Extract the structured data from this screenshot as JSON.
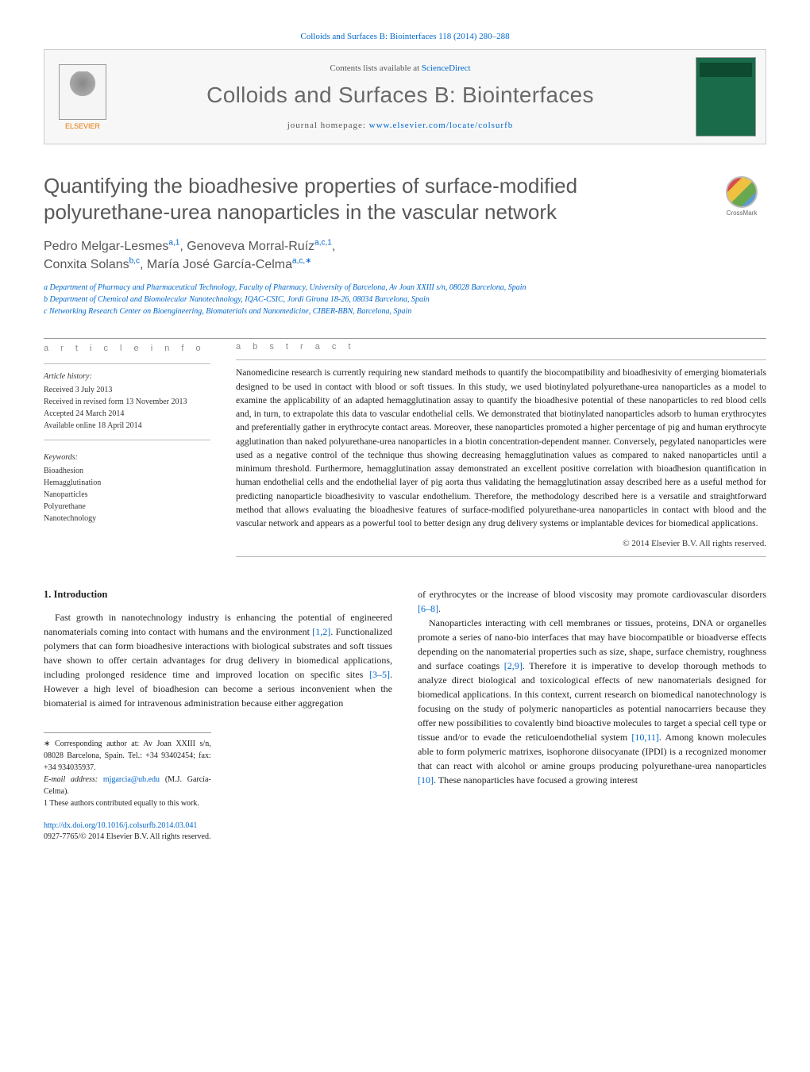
{
  "journal_ref_link": "Colloids and Surfaces B: Biointerfaces 118 (2014) 280–288",
  "header": {
    "contents_prefix": "Contents lists available at ",
    "contents_link": "ScienceDirect",
    "journal_title": "Colloids and Surfaces B: Biointerfaces",
    "homepage_label": "journal homepage: ",
    "homepage_url": "www.elsevier.com/locate/colsurfb",
    "publisher": "ELSEVIER"
  },
  "crossmark_label": "CrossMark",
  "article_title": "Quantifying the bioadhesive properties of surface-modified polyurethane-urea nanoparticles in the vascular network",
  "authors_html_parts": {
    "a1_name": "Pedro Melgar-Lesmes",
    "a1_sup": "a,1",
    "a2_name": "Genoveva Morral-Ruíz",
    "a2_sup": "a,c,1",
    "a3_name": "Conxita Solans",
    "a3_sup": "b,c",
    "a4_name": "María José García-Celma",
    "a4_sup": "a,c,∗"
  },
  "affiliations": {
    "a": "a Department of Pharmacy and Pharmaceutical Technology, Faculty of Pharmacy, University of Barcelona, Av Joan XXIII s/n, 08028 Barcelona, Spain",
    "b": "b Department of Chemical and Biomolecular Nanotechnology, IQAC-CSIC, Jordi Girona 18-26, 08034 Barcelona, Spain",
    "c": "c Networking Research Center on Bioengineering, Biomaterials and Nanomedicine, CIBER-BBN, Barcelona, Spain"
  },
  "article_info_label": "a r t i c l e   i n f o",
  "abstract_label": "a b s t r a c t",
  "history": {
    "head": "Article history:",
    "received": "Received 3 July 2013",
    "revised": "Received in revised form 13 November 2013",
    "accepted": "Accepted 24 March 2014",
    "online": "Available online 18 April 2014"
  },
  "keywords_head": "Keywords:",
  "keywords": [
    "Bioadhesion",
    "Hemagglutination",
    "Nanoparticles",
    "Polyurethane",
    "Nanotechnology"
  ],
  "abstract": "Nanomedicine research is currently requiring new standard methods to quantify the biocompatibility and bioadhesivity of emerging biomaterials designed to be used in contact with blood or soft tissues. In this study, we used biotinylated polyurethane-urea nanoparticles as a model to examine the applicability of an adapted hemagglutination assay to quantify the bioadhesive potential of these nanoparticles to red blood cells and, in turn, to extrapolate this data to vascular endothelial cells. We demonstrated that biotinylated nanoparticles adsorb to human erythrocytes and preferentially gather in erythrocyte contact areas. Moreover, these nanoparticles promoted a higher percentage of pig and human erythrocyte agglutination than naked polyurethane-urea nanoparticles in a biotin concentration-dependent manner. Conversely, pegylated nanoparticles were used as a negative control of the technique thus showing decreasing hemagglutination values as compared to naked nanoparticles until a minimum threshold. Furthermore, hemagglutination assay demonstrated an excellent positive correlation with bioadhesion quantification in human endothelial cells and the endothelial layer of pig aorta thus validating the hemagglutination assay described here as a useful method for predicting nanoparticle bioadhesivity to vascular endothelium. Therefore, the methodology described here is a versatile and straightforward method that allows evaluating the bioadhesive features of surface-modified polyurethane-urea nanoparticles in contact with blood and the vascular network and appears as a powerful tool to better design any drug delivery systems or implantable devices for biomedical applications.",
  "copyright": "© 2014 Elsevier B.V. All rights reserved.",
  "intro_heading": "1. Introduction",
  "intro_col1_p1_a": "Fast growth in nanotechnology industry is enhancing the potential of engineered nanomaterials coming into contact with humans and the environment ",
  "intro_col1_ref1": "[1,2]",
  "intro_col1_p1_b": ". Functionalized polymers that can form bioadhesive interactions with biological substrates and soft tissues have shown to offer certain advantages for drug delivery in biomedical applications, including prolonged residence time and improved location on specific sites ",
  "intro_col1_ref2": "[3–5]",
  "intro_col1_p1_c": ". However a high level of bioadhesion can become a serious inconvenient when the biomaterial is aimed for intravenous administration because either aggregation",
  "intro_col2_p1_a": "of erythrocytes or the increase of blood viscosity may promote cardiovascular disorders ",
  "intro_col2_ref1": "[6–8]",
  "intro_col2_p1_b": ".",
  "intro_col2_p2_a": "Nanoparticles interacting with cell membranes or tissues, proteins, DNA or organelles promote a series of nano-bio interfaces that may have biocompatible or bioadverse effects depending on the nanomaterial properties such as size, shape, surface chemistry, roughness and surface coatings ",
  "intro_col2_ref2": "[2,9]",
  "intro_col2_p2_b": ". Therefore it is imperative to develop thorough methods to analyze direct biological and toxicological effects of new nanomaterials designed for biomedical applications. In this context, current research on biomedical nanotechnology is focusing on the study of polymeric nanoparticles as potential nanocarriers because they offer new possibilities to covalently bind bioactive molecules to target a special cell type or tissue and/or to evade the reticuloendothelial system ",
  "intro_col2_ref3": "[10,11]",
  "intro_col2_p2_c": ". Among known molecules able to form polymeric matrixes, isophorone diisocyanate (IPDI) is a recognized monomer that can react with alcohol or amine groups producing polyurethane-urea nanoparticles ",
  "intro_col2_ref4": "[10]",
  "intro_col2_p2_d": ". These nanoparticles have focused a growing interest",
  "footnotes": {
    "corresp": "∗ Corresponding author at: Av Joan XXIII s/n, 08028 Barcelona, Spain. Tel.: +34 93402454; fax: +34 934035937.",
    "email_label": "E-mail address: ",
    "email": "mjgarcia@ub.edu",
    "email_person": " (M.J. García-Celma).",
    "equal": "1 These authors contributed equally to this work."
  },
  "doi": {
    "link": "http://dx.doi.org/10.1016/j.colsurfb.2014.03.041",
    "issn_copy": "0927-7765/© 2014 Elsevier B.V. All rights reserved."
  },
  "colors": {
    "link": "#0066cc",
    "heading_gray": "#585858",
    "border": "#cccccc",
    "elsevier_orange": "#e67700"
  }
}
